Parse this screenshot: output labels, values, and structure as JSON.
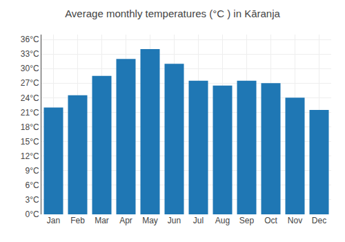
{
  "chart_data": {
    "type": "bar",
    "title": "Average monthly temperatures (°C ) in Kāranja",
    "categories": [
      "Jan",
      "Feb",
      "Mar",
      "Apr",
      "May",
      "Jun",
      "Jul",
      "Aug",
      "Sep",
      "Oct",
      "Nov",
      "Dec"
    ],
    "values": [
      22.0,
      24.5,
      28.5,
      32.0,
      34.0,
      31.0,
      27.5,
      26.5,
      27.5,
      27.0,
      24.0,
      21.5
    ],
    "ylim": [
      0,
      37
    ],
    "yticks": [
      {
        "value": 0,
        "label": "0°C"
      },
      {
        "value": 3,
        "label": "3°C"
      },
      {
        "value": 6,
        "label": "6°C"
      },
      {
        "value": 9,
        "label": "9°C"
      },
      {
        "value": 12,
        "label": "12°C"
      },
      {
        "value": 15,
        "label": "15°C"
      },
      {
        "value": 18,
        "label": "18°C"
      },
      {
        "value": 21,
        "label": "21°C"
      },
      {
        "value": 24,
        "label": "24°C"
      },
      {
        "value": 27,
        "label": "27°C"
      },
      {
        "value": 30,
        "label": "30°C"
      },
      {
        "value": 33,
        "label": "33°C"
      },
      {
        "value": 36,
        "label": "36°C"
      }
    ],
    "grid": true
  }
}
